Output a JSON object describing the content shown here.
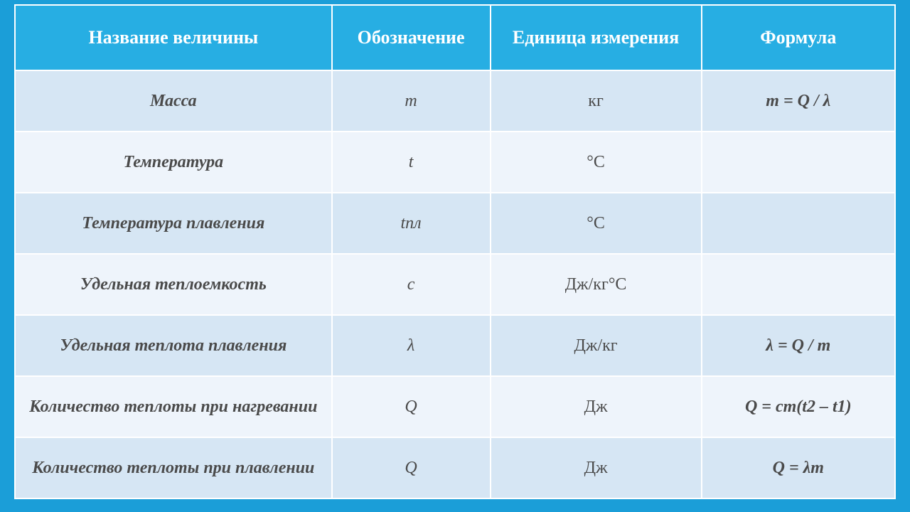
{
  "style": {
    "page_background": "#1b9ed8",
    "header_background": "#27aee3",
    "row_odd_background": "#d6e6f4",
    "row_even_background": "#eef4fb",
    "border_color": "#ffffff",
    "header_text_color": "#ffffff",
    "body_text_color": "#4a4a4a",
    "header_fontsize": 26,
    "body_fontsize": 24,
    "column_widths_pct": [
      36,
      18,
      24,
      22
    ],
    "font_family": "Times New Roman"
  },
  "table": {
    "columns": [
      "Название величины",
      "Обозначение",
      "Единица измерения",
      "Формула"
    ],
    "rows": [
      {
        "name": "Масса",
        "symbol": "m",
        "unit": "кг",
        "formula": "m = Q / λ"
      },
      {
        "name": "Температура",
        "symbol": "t",
        "unit": "°С",
        "formula": ""
      },
      {
        "name": "Температура плавления",
        "symbol": "tпл",
        "unit": "°С",
        "formula": ""
      },
      {
        "name": "Удельная теплоемкость",
        "symbol": "c",
        "unit": "Дж/кг°С",
        "formula": ""
      },
      {
        "name": "Удельная теплота плавления",
        "symbol": "λ",
        "unit": "Дж/кг",
        "formula": "λ = Q / m"
      },
      {
        "name": "Количество теплоты при нагревании",
        "symbol": "Q",
        "unit": "Дж",
        "formula": "Q = cm(t2 – t1)"
      },
      {
        "name": "Количество теплоты при плавлении",
        "symbol": "Q",
        "unit": "Дж",
        "formula": "Q = λm"
      }
    ]
  }
}
